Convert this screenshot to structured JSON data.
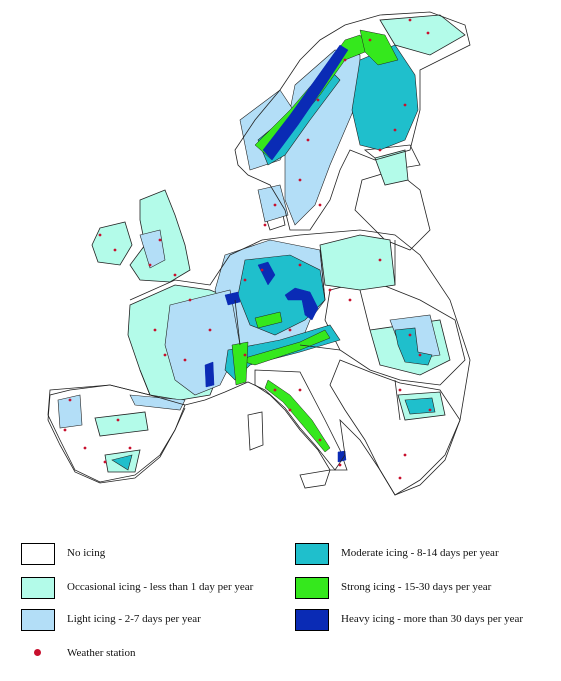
{
  "legend": {
    "items": [
      {
        "key": "none",
        "label": "No icing",
        "color": "#ffffff"
      },
      {
        "key": "occasional",
        "label": "Occasional  icing - less than 1 day per year",
        "color": "#b3fbe9"
      },
      {
        "key": "light",
        "label": "Light  icing - 2-7 days per year",
        "color": "#b3def7"
      },
      {
        "key": "moderate",
        "label": "Moderate  icing - 8-14 days per year",
        "color": "#1fbfcc"
      },
      {
        "key": "strong",
        "label": "Strong  icing - 15-30 days per year",
        "color": "#35e81d"
      },
      {
        "key": "heavy",
        "label": "Heavy  icing - more than 30 days per year",
        "color": "#0a2bb5"
      }
    ],
    "station": {
      "label": "Weather station",
      "color": "#c8102e"
    }
  },
  "colors": {
    "border": "#222222",
    "no_icing": "#ffffff",
    "occasional": "#b3fbe9",
    "light": "#b3def7",
    "moderate": "#1fbfcc",
    "strong": "#35e81d",
    "heavy": "#0a2bb5",
    "station": "#c8102e"
  }
}
